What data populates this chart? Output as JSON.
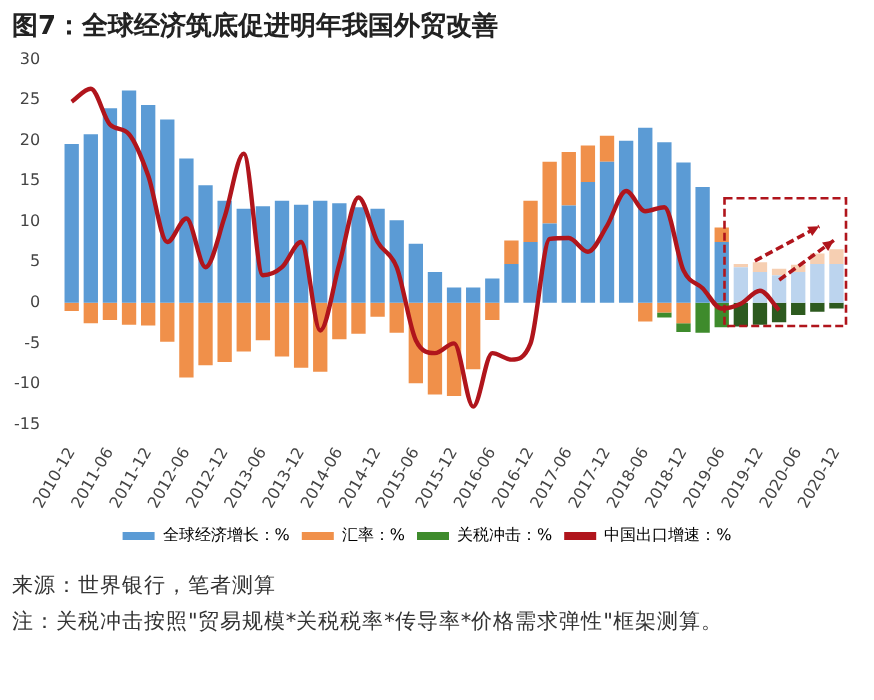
{
  "chart_data": {
    "type": "bar",
    "title": "图7：全球经济筑底促进明年我国外贸改善",
    "categories": [
      "2010-12",
      null,
      "2011-06",
      null,
      "2011-12",
      null,
      "2012-06",
      null,
      "2012-12",
      null,
      "2013-06",
      null,
      "2013-12",
      null,
      "2014-06",
      null,
      "2014-12",
      null,
      "2015-06",
      null,
      "2015-12",
      null,
      "2016-06",
      null,
      "2016-12",
      null,
      "2017-06",
      null,
      "2017-12",
      null,
      "2018-06",
      null,
      "2018-12",
      null,
      "2019-06",
      null,
      "2019-12",
      null,
      "2020-06",
      null,
      "2020-12"
    ],
    "stacked": true,
    "series": [
      {
        "name": "全球经济增长：%",
        "color": "#5b9bd5",
        "colors": [
          "#5b9bd5",
          "#5b9bd5",
          "#5b9bd5",
          "#5b9bd5",
          "#5b9bd5",
          "#5b9bd5",
          "#5b9bd5",
          "#5b9bd5",
          "#5b9bd5",
          "#5b9bd5",
          "#5b9bd5",
          "#5b9bd5",
          "#5b9bd5",
          "#5b9bd5",
          "#5b9bd5",
          "#5b9bd5",
          "#5b9bd5",
          "#5b9bd5",
          "#5b9bd5",
          "#5b9bd5",
          "#5b9bd5",
          "#5b9bd5",
          "#5b9bd5",
          "#5b9bd5",
          "#5b9bd5",
          "#5b9bd5",
          "#5b9bd5",
          "#5b9bd5",
          "#5b9bd5",
          "#5b9bd5",
          "#5b9bd5",
          "#5b9bd5",
          "#5b9bd5",
          "#5b9bd5",
          "#5b9bd5",
          "#bcd4ee",
          "#bcd4ee",
          "#bcd4ee",
          "#bcd4ee",
          "#bcd4ee",
          "#bcd4ee"
        ],
        "values": [
          19.6,
          20.8,
          24.0,
          26.2,
          24.4,
          22.6,
          17.8,
          14.5,
          12.6,
          11.6,
          11.9,
          12.6,
          12.1,
          12.6,
          12.3,
          11.8,
          11.6,
          10.2,
          7.3,
          3.8,
          1.9,
          1.9,
          3.0,
          4.8,
          7.5,
          9.8,
          12.0,
          14.9,
          17.4,
          20.0,
          21.6,
          19.8,
          17.3,
          14.3,
          7.5,
          4.4,
          3.8,
          3.4,
          3.8,
          4.8,
          4.8
        ]
      },
      {
        "name": "汇率：%",
        "color": "#f0904a",
        "colors": [
          "#f0904a",
          "#f0904a",
          "#f0904a",
          "#f0904a",
          "#f0904a",
          "#f0904a",
          "#f0904a",
          "#f0904a",
          "#f0904a",
          "#f0904a",
          "#f0904a",
          "#f0904a",
          "#f0904a",
          "#f0904a",
          "#f0904a",
          "#f0904a",
          "#f0904a",
          "#f0904a",
          "#f0904a",
          "#f0904a",
          "#f0904a",
          "#f0904a",
          "#f0904a",
          "#f0904a",
          "#f0904a",
          "#f0904a",
          "#f0904a",
          "#f0904a",
          "#f0904a",
          "#f0904a",
          "#f0904a",
          "#f0904a",
          "#f0904a",
          "#f0904a",
          "#f0904a",
          "#f6cfb2",
          "#f6cfb2",
          "#f6cfb2",
          "#f6cfb2",
          "#f6cfb2",
          "#f6cfb2"
        ],
        "values": [
          -1.0,
          -2.5,
          -2.1,
          -2.7,
          -2.8,
          -4.8,
          -9.2,
          -7.7,
          -7.3,
          -6.0,
          -4.6,
          -6.6,
          -8.0,
          -8.5,
          -4.5,
          -3.8,
          -1.7,
          -3.7,
          -9.9,
          -11.3,
          -11.5,
          -8.2,
          -2.1,
          2.9,
          5.1,
          7.6,
          6.6,
          4.5,
          3.2,
          null,
          -2.3,
          -1.2,
          -2.5,
          null,
          1.8,
          0.4,
          1.2,
          0.8,
          0.9,
          1.3,
          1.8
        ]
      },
      {
        "name": "关税冲击：%",
        "color": "#3e8b2c",
        "colors": [
          "#3e8b2c",
          "#3e8b2c",
          "#3e8b2c",
          "#3e8b2c",
          "#3e8b2c",
          "#3e8b2c",
          "#3e8b2c",
          "#3e8b2c",
          "#3e8b2c",
          "#3e8b2c",
          "#3e8b2c",
          "#3e8b2c",
          "#3e8b2c",
          "#3e8b2c",
          "#3e8b2c",
          "#3e8b2c",
          "#3e8b2c",
          "#3e8b2c",
          "#3e8b2c",
          "#3e8b2c",
          "#3e8b2c",
          "#3e8b2c",
          "#3e8b2c",
          "#3e8b2c",
          "#3e8b2c",
          "#3e8b2c",
          "#3e8b2c",
          "#3e8b2c",
          "#3e8b2c",
          "#3e8b2c",
          "#3e8b2c",
          "#3e8b2c",
          "#3e8b2c",
          "#3e8b2c",
          "#3e8b2c",
          "#2d5a1f",
          "#2d5a1f",
          "#2d5a1f",
          "#2d5a1f",
          "#2d5a1f",
          "#2d5a1f"
        ],
        "values": [
          null,
          null,
          null,
          null,
          null,
          null,
          null,
          null,
          null,
          null,
          null,
          null,
          null,
          null,
          null,
          null,
          null,
          null,
          null,
          null,
          null,
          null,
          null,
          null,
          null,
          null,
          null,
          null,
          null,
          null,
          null,
          -0.6,
          -1.1,
          -3.7,
          -3.0,
          -2.9,
          -2.7,
          -2.4,
          -1.5,
          -1.1,
          -0.7
        ]
      },
      {
        "name": "中国出口增速：%",
        "type": "line",
        "color": "#b0151c",
        "values": [
          24.8,
          26.4,
          22.0,
          20.8,
          15.7,
          7.5,
          10.4,
          4.4,
          10.6,
          18.4,
          3.4,
          4.4,
          7.5,
          -3.4,
          4.8,
          13.0,
          7.5,
          4.4,
          -4.6,
          -6.2,
          -5.0,
          -12.8,
          -6.2,
          -7.0,
          -5.0,
          7.9,
          8.0,
          6.3,
          9.5,
          13.8,
          11.3,
          11.8,
          4.0,
          1.8,
          -0.7,
          -0.1,
          1.5,
          -0.9,
          null,
          null,
          null
        ]
      }
    ],
    "ylim": [
      -15,
      30
    ],
    "yticks": [
      -15,
      -10,
      -5,
      0,
      5,
      10,
      15,
      20,
      25,
      30
    ],
    "grid": false,
    "legend": "bottom",
    "annotations": [
      "来源：世界银行，笔者测算",
      "注：关税冲击按照\"贸易规模*关税税率*传导率*价格需求弹性\"框架测算。"
    ]
  }
}
